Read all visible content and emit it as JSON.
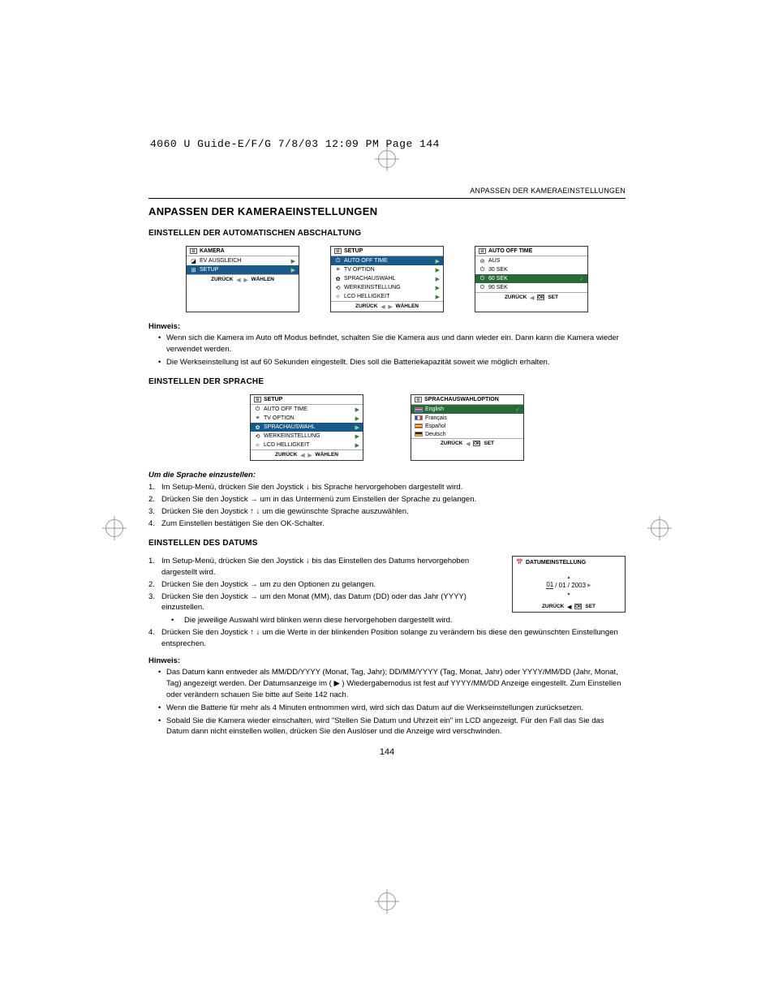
{
  "header_runner": "4060 U Guide-E/F/G  7/8/03  12:09 PM  Page 144",
  "running_head": "ANPASSEN DER KAMERAEINSTELLUNGEN",
  "h1": "ANPASSEN DER KAMERAEINSTELLUNGEN",
  "page_number": "144",
  "sec1": {
    "h2": "EINSTELLEN DER AUTOMATISCHEN ABSCHALTUNG",
    "note_label": "Hinweis:",
    "notes": [
      "Wenn sich die Kamera im Auto off Modus befindet, schalten Sie die Kamera aus und dann wieder ein. Dann kann die Kamera wieder verwendet werden.",
      "Die Werkseinstellung ist auf 60 Sekunden eingestellt. Dies soll die Batteriekapazität soweit wie möglich erhalten."
    ],
    "lcd1": {
      "title": "KAMERA",
      "rows": [
        {
          "label": "EV AUSGLEICH",
          "sel": false,
          "arrow": true,
          "icon": "◪"
        },
        {
          "label": "SETUP",
          "sel": true,
          "arrow": true,
          "icon": "⊞"
        }
      ],
      "f_left": "ZURÜCK",
      "f_right": "WÄHLEN"
    },
    "lcd2": {
      "title": "SETUP",
      "rows": [
        {
          "label": "AUTO OFF TIME",
          "sel": true,
          "arrow": true,
          "icon": "⏻"
        },
        {
          "label": "TV OPTION",
          "sel": false,
          "arrow": true,
          "icon": "≡"
        },
        {
          "label": "SPRACHAUSWAHL",
          "sel": false,
          "arrow": true,
          "icon": "✿"
        },
        {
          "label": "WERKEINSTELLUNG",
          "sel": false,
          "arrow": true,
          "icon": "⟲"
        },
        {
          "label": "LCD HELLIGKEIT",
          "sel": false,
          "arrow": true,
          "icon": "☼"
        }
      ],
      "f_left": "ZURÜCK",
      "f_right": "WÄHLEN"
    },
    "lcd3": {
      "title": "AUTO OFF TIME",
      "rows": [
        {
          "label": "AUS",
          "sel": false,
          "icon": "⊘"
        },
        {
          "label": "30 SEK",
          "sel": false,
          "icon": "⏻"
        },
        {
          "label": "60 SEK",
          "sel": true,
          "check": true,
          "icon": "⏻"
        },
        {
          "label": "90 SEK",
          "sel": false,
          "icon": "⏻"
        }
      ],
      "f_left": "ZURÜCK",
      "f_right": "SET"
    }
  },
  "sec2": {
    "h2": "EINSTELLEN DER SPRACHE",
    "steps_title": "Um die Sprache einzustellen:",
    "steps": [
      "Im Setup-Menü, drücken Sie den Joystick  ↓  bis Sprache hervorgehoben dargestellt wird.",
      "Drücken Sie den Joystick  →  um in das Untermenü zum Einstellen der Sprache zu gelangen.",
      "Drücken Sie den Joystick  ↑ ↓  um die gewünschte Sprache auszuwählen.",
      "Zum Einstellen bestätigen Sie den OK-Schalter."
    ],
    "lcd1": {
      "title": "SETUP",
      "rows": [
        {
          "label": "AUTO OFF TIME",
          "sel": false,
          "arrow": true,
          "icon": "⏻"
        },
        {
          "label": "TV OPTION",
          "sel": false,
          "arrow": true,
          "icon": "≡"
        },
        {
          "label": "SPRACHAUSWAHL",
          "sel": true,
          "arrow": true,
          "icon": "✿"
        },
        {
          "label": "WERKEINSTELLUNG",
          "sel": false,
          "arrow": true,
          "icon": "⟲"
        },
        {
          "label": "LCD HELLIGKEIT",
          "sel": false,
          "arrow": true,
          "icon": "☼"
        }
      ],
      "f_left": "ZURÜCK",
      "f_right": "WÄHLEN"
    },
    "lcd2": {
      "title": "SPRACHAUSWAHLOPTION",
      "rows": [
        {
          "label": "English",
          "sel": true,
          "check": true,
          "flag": "uk"
        },
        {
          "label": "Français",
          "sel": false,
          "flag": "fr"
        },
        {
          "label": "Español",
          "sel": false,
          "flag": "es"
        },
        {
          "label": "Deutsch",
          "sel": false,
          "flag": "de"
        }
      ],
      "f_left": "ZURÜCK",
      "f_right": "SET"
    }
  },
  "sec3": {
    "h2": "EINSTELLEN DES DATUMS",
    "steps": [
      "Im Setup-Menü, drücken Sie den Joystick  ↓  bis das Einstellen des Datums hervorgehoben dargestellt wird.",
      "Drücken Sie den Joystick  →  um zu den Optionen zu gelangen.",
      "Drücken Sie den Joystick  →  um den Monat (MM), das Datum (DD) oder das Jahr (YYYY) einzustellen.",
      "Drücken Sie den Joystick  ↑ ↓  um die Werte in der blinkenden Position solange zu verändern bis diese den gewünschten Einstellungen entsprechen."
    ],
    "substep": "Die jeweilige Auswahl wird blinken wenn diese hervorgehoben dargestellt wird.",
    "note_label": "Hinweis:",
    "notes": [
      "Das Datum kann entweder als MM/DD/YYYY (Monat, Tag, Jahr); DD/MM/YYYY (Tag, Monat, Jahr) oder YYYY/MM/DD (Jahr, Monat, Tag) angezeigt werden. Der Datumsanzeige im ( ▶ ) Wiedergabemodus ist fest auf YYYY/MM/DD Anzeige eingestellt. Zum Einstellen oder verändern schauen Sie bitte auf Seite 142 nach.",
      "Wenn die Batterie für mehr als 4 Minuten entnommen wird, wird sich das Datum auf die Werkseinstellungen zurücksetzen.",
      "Sobald Sie die Kamera wieder einschalten, wird \"Stellen Sie Datum und Uhrzeit ein\" im LCD angezeigt. Für den Fall das Sie das Datum dann nicht einstellen wollen, drücken Sie den Auslöser und die Anzeige wird verschwinden."
    ],
    "lcd": {
      "title": "DATUMEINSTELLUNG",
      "date": {
        "mm": "01",
        "dd": "01",
        "yyyy": "2003"
      },
      "f_left": "ZURÜCK",
      "f_right": "SET"
    }
  }
}
